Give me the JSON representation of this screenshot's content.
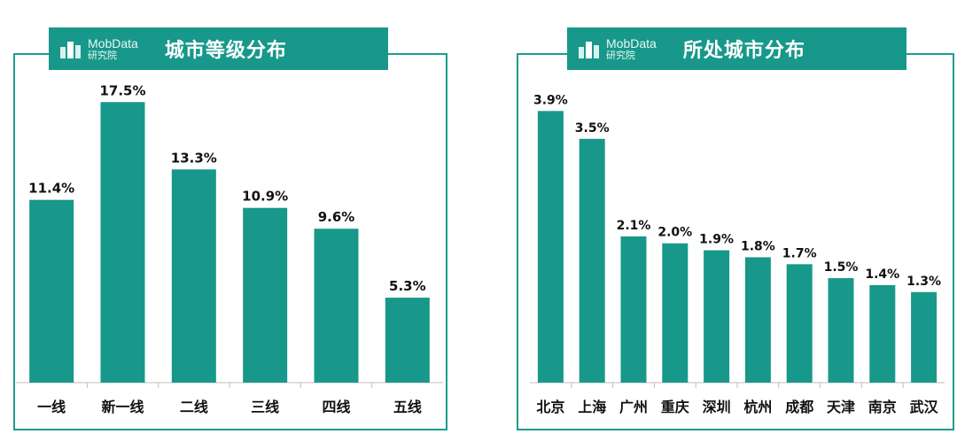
{
  "logo": {
    "brand": "MobData",
    "sub": "研究院"
  },
  "colors": {
    "bar": "#17988a",
    "accent": "#17988a",
    "text": "#111111"
  },
  "chart_data": [
    {
      "type": "bar",
      "title": "城市等级分布",
      "categories": [
        "一线",
        "新一线",
        "二线",
        "三线",
        "四线",
        "五线"
      ],
      "values": [
        11.4,
        17.5,
        13.3,
        10.9,
        9.6,
        5.3
      ],
      "labels": [
        "11.4%",
        "17.5%",
        "13.3%",
        "10.9%",
        "9.6%",
        "5.3%"
      ],
      "unit": "%",
      "ylim": [
        0,
        20
      ],
      "grid": false
    },
    {
      "type": "bar",
      "title": "所处城市分布",
      "categories": [
        "北京",
        "上海",
        "广州",
        "重庆",
        "深圳",
        "杭州",
        "成都",
        "天津",
        "南京",
        "武汉"
      ],
      "values": [
        3.9,
        3.5,
        2.1,
        2.0,
        1.9,
        1.8,
        1.7,
        1.5,
        1.4,
        1.3
      ],
      "labels": [
        "3.9%",
        "3.5%",
        "2.1%",
        "2.0%",
        "1.9%",
        "1.8%",
        "1.7%",
        "1.5%",
        "1.4%",
        "1.3%"
      ],
      "unit": "%",
      "ylim": [
        0,
        4.4
      ],
      "grid": false
    }
  ]
}
